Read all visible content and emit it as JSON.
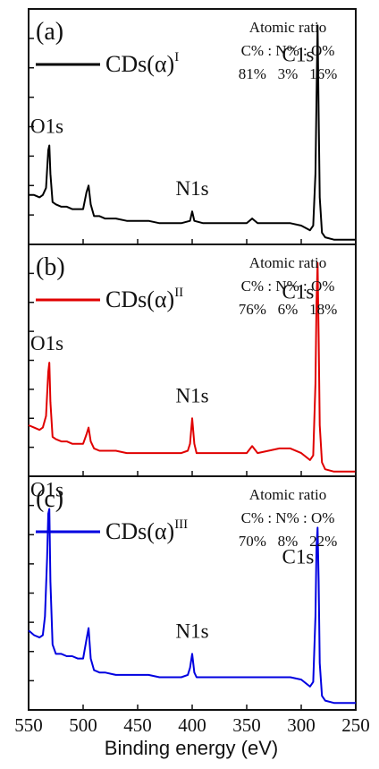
{
  "chart_data": {
    "type": "line",
    "xlabel": "Binding energy (eV)",
    "xlim": [
      550,
      250
    ],
    "x_ticks": [
      "550",
      "500",
      "450",
      "400",
      "350",
      "300",
      "250"
    ],
    "panels": [
      {
        "letter": "(a)",
        "color": "#000000",
        "legend_base": "CDs(α)",
        "legend_sup": "I",
        "ratio_title": "Atomic ratio",
        "ratio_header": "C% : N% : O%",
        "ratio_values": "81%   3%   16%",
        "peaks": [
          {
            "label": "O1s",
            "x": 531
          },
          {
            "label": "N1s",
            "x": 400
          },
          {
            "label": "C1s",
            "x": 285
          }
        ],
        "series": [
          [
            550,
            0.21
          ],
          [
            545,
            0.21
          ],
          [
            540,
            0.2
          ],
          [
            537,
            0.21
          ],
          [
            534,
            0.24
          ],
          [
            532,
            0.4
          ],
          [
            531,
            0.42
          ],
          [
            530,
            0.3
          ],
          [
            528,
            0.18
          ],
          [
            525,
            0.17
          ],
          [
            520,
            0.16
          ],
          [
            515,
            0.16
          ],
          [
            510,
            0.15
          ],
          [
            505,
            0.15
          ],
          [
            500,
            0.15
          ],
          [
            497,
            0.22
          ],
          [
            495,
            0.25
          ],
          [
            493,
            0.17
          ],
          [
            490,
            0.12
          ],
          [
            485,
            0.12
          ],
          [
            480,
            0.11
          ],
          [
            470,
            0.11
          ],
          [
            460,
            0.1
          ],
          [
            450,
            0.1
          ],
          [
            440,
            0.1
          ],
          [
            430,
            0.09
          ],
          [
            420,
            0.09
          ],
          [
            410,
            0.09
          ],
          [
            402,
            0.1
          ],
          [
            400,
            0.14
          ],
          [
            398,
            0.1
          ],
          [
            390,
            0.09
          ],
          [
            380,
            0.09
          ],
          [
            370,
            0.09
          ],
          [
            360,
            0.09
          ],
          [
            350,
            0.09
          ],
          [
            345,
            0.11
          ],
          [
            340,
            0.09
          ],
          [
            330,
            0.09
          ],
          [
            320,
            0.09
          ],
          [
            310,
            0.09
          ],
          [
            300,
            0.08
          ],
          [
            292,
            0.06
          ],
          [
            289,
            0.08
          ],
          [
            287,
            0.3
          ],
          [
            286,
            0.62
          ],
          [
            285,
            0.93
          ],
          [
            284,
            0.55
          ],
          [
            283,
            0.2
          ],
          [
            281,
            0.05
          ],
          [
            278,
            0.03
          ],
          [
            270,
            0.02
          ],
          [
            260,
            0.02
          ],
          [
            250,
            0.02
          ]
        ]
      },
      {
        "letter": "(b)",
        "color": "#e00000",
        "legend_base": "CDs(α)",
        "legend_sup": "II",
        "ratio_title": "Atomic ratio",
        "ratio_header": "C% : N% : O%",
        "ratio_values": "76%   6%   18%",
        "peaks": [
          {
            "label": "O1s",
            "x": 531
          },
          {
            "label": "N1s",
            "x": 400
          },
          {
            "label": "C1s",
            "x": 285
          }
        ],
        "series": [
          [
            550,
            0.22
          ],
          [
            545,
            0.21
          ],
          [
            540,
            0.2
          ],
          [
            537,
            0.21
          ],
          [
            534,
            0.26
          ],
          [
            532,
            0.45
          ],
          [
            531,
            0.49
          ],
          [
            530,
            0.32
          ],
          [
            528,
            0.17
          ],
          [
            525,
            0.16
          ],
          [
            520,
            0.15
          ],
          [
            515,
            0.15
          ],
          [
            510,
            0.14
          ],
          [
            505,
            0.14
          ],
          [
            500,
            0.14
          ],
          [
            497,
            0.18
          ],
          [
            495,
            0.21
          ],
          [
            493,
            0.15
          ],
          [
            490,
            0.12
          ],
          [
            485,
            0.11
          ],
          [
            480,
            0.11
          ],
          [
            470,
            0.11
          ],
          [
            460,
            0.1
          ],
          [
            450,
            0.1
          ],
          [
            440,
            0.1
          ],
          [
            430,
            0.1
          ],
          [
            420,
            0.1
          ],
          [
            410,
            0.1
          ],
          [
            404,
            0.11
          ],
          [
            402,
            0.14
          ],
          [
            400,
            0.25
          ],
          [
            398,
            0.14
          ],
          [
            396,
            0.1
          ],
          [
            390,
            0.1
          ],
          [
            380,
            0.1
          ],
          [
            370,
            0.1
          ],
          [
            360,
            0.1
          ],
          [
            350,
            0.1
          ],
          [
            345,
            0.13
          ],
          [
            340,
            0.1
          ],
          [
            330,
            0.11
          ],
          [
            320,
            0.12
          ],
          [
            310,
            0.12
          ],
          [
            300,
            0.1
          ],
          [
            292,
            0.07
          ],
          [
            289,
            0.09
          ],
          [
            287,
            0.4
          ],
          [
            286,
            0.75
          ],
          [
            285,
            0.92
          ],
          [
            284,
            0.6
          ],
          [
            283,
            0.22
          ],
          [
            281,
            0.06
          ],
          [
            278,
            0.03
          ],
          [
            270,
            0.02
          ],
          [
            260,
            0.02
          ],
          [
            250,
            0.02
          ]
        ]
      },
      {
        "letter": "(c)",
        "color": "#0000e0",
        "legend_base": "CDs(α)",
        "legend_sup": "III",
        "ratio_title": "Atomic ratio",
        "ratio_header": "C% : N% : O%",
        "ratio_values": "70%   8%   22%",
        "peaks": [
          {
            "label": "O1s",
            "x": 531
          },
          {
            "label": "N1s",
            "x": 400
          },
          {
            "label": "C1s",
            "x": 285
          }
        ],
        "series": [
          [
            550,
            0.34
          ],
          [
            545,
            0.32
          ],
          [
            540,
            0.31
          ],
          [
            537,
            0.32
          ],
          [
            535,
            0.4
          ],
          [
            533,
            0.65
          ],
          [
            532,
            0.84
          ],
          [
            531,
            0.86
          ],
          [
            530,
            0.55
          ],
          [
            528,
            0.28
          ],
          [
            525,
            0.24
          ],
          [
            520,
            0.24
          ],
          [
            515,
            0.23
          ],
          [
            510,
            0.23
          ],
          [
            505,
            0.22
          ],
          [
            500,
            0.22
          ],
          [
            497,
            0.3
          ],
          [
            495,
            0.35
          ],
          [
            493,
            0.22
          ],
          [
            490,
            0.17
          ],
          [
            485,
            0.16
          ],
          [
            480,
            0.16
          ],
          [
            470,
            0.15
          ],
          [
            460,
            0.15
          ],
          [
            450,
            0.15
          ],
          [
            440,
            0.15
          ],
          [
            430,
            0.14
          ],
          [
            420,
            0.14
          ],
          [
            410,
            0.14
          ],
          [
            404,
            0.15
          ],
          [
            402,
            0.18
          ],
          [
            400,
            0.24
          ],
          [
            398,
            0.16
          ],
          [
            396,
            0.14
          ],
          [
            390,
            0.14
          ],
          [
            380,
            0.14
          ],
          [
            370,
            0.14
          ],
          [
            360,
            0.14
          ],
          [
            350,
            0.14
          ],
          [
            340,
            0.14
          ],
          [
            330,
            0.14
          ],
          [
            320,
            0.14
          ],
          [
            310,
            0.14
          ],
          [
            300,
            0.13
          ],
          [
            292,
            0.1
          ],
          [
            289,
            0.12
          ],
          [
            287,
            0.4
          ],
          [
            286,
            0.7
          ],
          [
            285,
            0.78
          ],
          [
            284,
            0.55
          ],
          [
            283,
            0.2
          ],
          [
            281,
            0.06
          ],
          [
            278,
            0.04
          ],
          [
            270,
            0.03
          ],
          [
            260,
            0.03
          ],
          [
            250,
            0.03
          ]
        ]
      }
    ]
  }
}
